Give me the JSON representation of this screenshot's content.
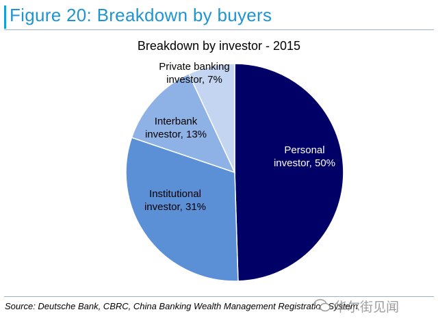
{
  "figure": {
    "title": "Figure 20: Breakdown by buyers"
  },
  "chart_data": {
    "type": "pie",
    "title": "Breakdown by investor - 2015",
    "slices": [
      {
        "label_lines": [
          "Personal",
          "investor, 50%"
        ],
        "value": 50,
        "color": "#000066",
        "text_color": "#ffffff"
      },
      {
        "label_lines": [
          "Institutional",
          "investor, 31%"
        ],
        "value": 31,
        "color": "#5b8fd6",
        "text_color": "#000000"
      },
      {
        "label_lines": [
          "Interbank",
          "investor, 13%"
        ],
        "value": 13,
        "color": "#8fb2e6",
        "text_color": "#000000"
      },
      {
        "label_lines": [
          "Private banking",
          "investor, 7%"
        ],
        "value": 7,
        "color": "#c3d5f1",
        "text_color": "#000000"
      }
    ],
    "start": "12 o'clock",
    "direction": "clockwise",
    "legend": "none"
  },
  "footer": {
    "source": "Source: Deutsche Bank, CBRC, China Banking Wealth Management Registration System",
    "watermark": "华尔街见闻"
  }
}
